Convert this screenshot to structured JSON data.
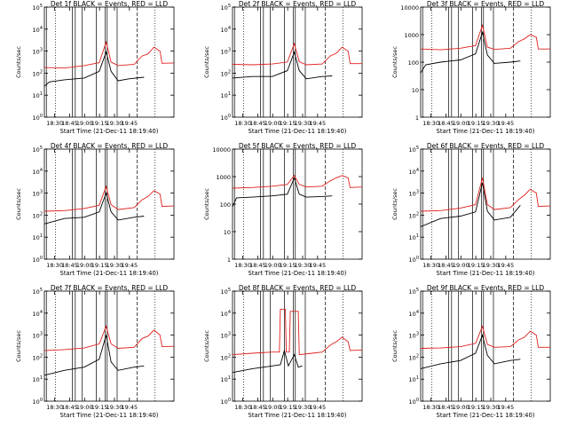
{
  "page": {
    "xlabel": "Start Time (21-Dec-11 18:19:40)",
    "ylabel": "Counts/sec",
    "xticks": [
      "18:30",
      "18:45",
      "19:00",
      "19:15",
      "19:30",
      "19:45"
    ],
    "colors": {
      "events": "#000000",
      "lld": "#e0201e",
      "axis": "#000000",
      "background": "#ffffff"
    }
  },
  "chart_data": [
    {
      "type": "line",
      "title": "Det 1f BLACK = Events, RED = LLD",
      "ylabel": "Counts/sec",
      "xlabel": "Start Time (21-Dec-11 18:19:40)",
      "yscale": "log",
      "ylim": [
        1,
        100000
      ],
      "yticks": [
        "10^0",
        "10^1",
        "10^2",
        "10^3",
        "10^4",
        "10^5"
      ],
      "x_range_min": [
        0,
        130
      ],
      "series": [
        {
          "name": "Events",
          "points": [
            [
              0,
              25
            ],
            [
              5,
              40
            ],
            [
              20,
              50
            ],
            [
              40,
              60
            ],
            [
              55,
              120
            ],
            [
              62,
              900
            ],
            [
              67,
              120
            ],
            [
              74,
              45
            ],
            [
              85,
              55
            ],
            [
              100,
              65
            ]
          ]
        },
        {
          "name": "LLD",
          "points": [
            [
              0,
              180
            ],
            [
              20,
              170
            ],
            [
              40,
              220
            ],
            [
              55,
              300
            ],
            [
              62,
              2600
            ],
            [
              67,
              320
            ],
            [
              74,
              220
            ],
            [
              90,
              250
            ],
            [
              98,
              600
            ],
            [
              104,
              750
            ],
            [
              110,
              1500
            ],
            [
              116,
              1000
            ],
            [
              118,
              280
            ],
            [
              130,
              290
            ]
          ]
        }
      ]
    },
    {
      "type": "line",
      "title": "Det 2f BLACK = Events, RED = LLD",
      "ylabel": "Counts/sec",
      "xlabel": "Start Time (21-Dec-11 18:19:40)",
      "yscale": "log",
      "ylim": [
        1,
        100000
      ],
      "yticks": [
        "10^0",
        "10^1",
        "10^2",
        "10^3",
        "10^4",
        "10^5"
      ],
      "x_range_min": [
        0,
        130
      ],
      "series": [
        {
          "name": "Events",
          "points": [
            [
              0,
              60
            ],
            [
              20,
              70
            ],
            [
              40,
              70
            ],
            [
              55,
              130
            ],
            [
              62,
              900
            ],
            [
              67,
              130
            ],
            [
              74,
              55
            ],
            [
              90,
              70
            ],
            [
              100,
              75
            ]
          ]
        },
        {
          "name": "LLD",
          "points": [
            [
              0,
              250
            ],
            [
              20,
              240
            ],
            [
              40,
              260
            ],
            [
              55,
              320
            ],
            [
              62,
              2200
            ],
            [
              67,
              330
            ],
            [
              74,
              240
            ],
            [
              90,
              260
            ],
            [
              98,
              600
            ],
            [
              104,
              800
            ],
            [
              110,
              1500
            ],
            [
              116,
              1000
            ],
            [
              118,
              270
            ],
            [
              130,
              270
            ]
          ]
        }
      ]
    },
    {
      "type": "line",
      "title": "Det 3f BLACK = Events, RED = LLD",
      "ylabel": "Counts/sec",
      "xlabel": "Start Time (21-Dec-11 18:19:40)",
      "yscale": "log",
      "ylim": [
        1,
        10000
      ],
      "yticks": [
        "1",
        "10",
        "100",
        "1000",
        "10000"
      ],
      "x_range_min": [
        0,
        130
      ],
      "series": [
        {
          "name": "Events",
          "points": [
            [
              0,
              40
            ],
            [
              5,
              80
            ],
            [
              20,
              100
            ],
            [
              40,
              120
            ],
            [
              55,
              200
            ],
            [
              62,
              1200
            ],
            [
              67,
              180
            ],
            [
              74,
              90
            ],
            [
              90,
              100
            ],
            [
              100,
              110
            ]
          ]
        },
        {
          "name": "LLD",
          "points": [
            [
              0,
              300
            ],
            [
              20,
              280
            ],
            [
              40,
              320
            ],
            [
              55,
              400
            ],
            [
              62,
              2200
            ],
            [
              67,
              350
            ],
            [
              74,
              290
            ],
            [
              90,
              320
            ],
            [
              98,
              550
            ],
            [
              104,
              700
            ],
            [
              110,
              1000
            ],
            [
              116,
              800
            ],
            [
              118,
              300
            ],
            [
              130,
              300
            ]
          ]
        }
      ]
    },
    {
      "type": "line",
      "title": "Det 4f BLACK = Events, RED = LLD",
      "ylabel": "Counts/sec",
      "xlabel": "Start Time (21-Dec-11 18:19:40)",
      "yscale": "log",
      "ylim": [
        1,
        100000
      ],
      "yticks": [
        "10^0",
        "10^1",
        "10^2",
        "10^3",
        "10^4",
        "10^5"
      ],
      "x_range_min": [
        0,
        130
      ],
      "series": [
        {
          "name": "Events",
          "points": [
            [
              0,
              40
            ],
            [
              20,
              70
            ],
            [
              40,
              80
            ],
            [
              55,
              140
            ],
            [
              62,
              1000
            ],
            [
              67,
              140
            ],
            [
              74,
              60
            ],
            [
              90,
              80
            ],
            [
              100,
              90
            ]
          ]
        },
        {
          "name": "LLD",
          "points": [
            [
              0,
              150
            ],
            [
              20,
              160
            ],
            [
              40,
              200
            ],
            [
              55,
              280
            ],
            [
              62,
              2000
            ],
            [
              67,
              300
            ],
            [
              74,
              180
            ],
            [
              90,
              220
            ],
            [
              98,
              500
            ],
            [
              104,
              700
            ],
            [
              110,
              1300
            ],
            [
              116,
              900
            ],
            [
              118,
              250
            ],
            [
              130,
              260
            ]
          ]
        }
      ]
    },
    {
      "type": "line",
      "title": "Det 5f BLACK = Events, RED = LLD",
      "ylabel": "Counts/sec",
      "xlabel": "Start Time (21-Dec-11 18:19:40)",
      "yscale": "log",
      "ylim": [
        1,
        10000
      ],
      "yticks": [
        "1",
        "10",
        "100",
        "1000",
        "10000"
      ],
      "x_range_min": [
        0,
        130
      ],
      "series": [
        {
          "name": "Events",
          "points": [
            [
              0,
              80
            ],
            [
              4,
              170
            ],
            [
              20,
              180
            ],
            [
              40,
              200
            ],
            [
              55,
              230
            ],
            [
              62,
              900
            ],
            [
              67,
              230
            ],
            [
              74,
              180
            ],
            [
              90,
              190
            ],
            [
              100,
              200
            ]
          ]
        },
        {
          "name": "LLD",
          "points": [
            [
              0,
              380
            ],
            [
              20,
              400
            ],
            [
              40,
              450
            ],
            [
              55,
              520
            ],
            [
              62,
              1100
            ],
            [
              67,
              520
            ],
            [
              74,
              420
            ],
            [
              90,
              450
            ],
            [
              98,
              700
            ],
            [
              104,
              900
            ],
            [
              110,
              1100
            ],
            [
              116,
              900
            ],
            [
              118,
              400
            ],
            [
              130,
              420
            ]
          ]
        }
      ]
    },
    {
      "type": "line",
      "title": "Det 6f BLACK = Events, RED = LLD",
      "ylabel": "Counts/sec",
      "xlabel": "Start Time (21-Dec-11 18:19:40)",
      "yscale": "log",
      "ylim": [
        1,
        100000
      ],
      "yticks": [
        "10^0",
        "10^1",
        "10^2",
        "10^3",
        "10^4",
        "10^5"
      ],
      "x_range_min": [
        0,
        130
      ],
      "series": [
        {
          "name": "Events",
          "points": [
            [
              0,
              30
            ],
            [
              20,
              70
            ],
            [
              40,
              90
            ],
            [
              55,
              140
            ],
            [
              62,
              3000
            ],
            [
              67,
              150
            ],
            [
              74,
              60
            ],
            [
              90,
              80
            ],
            [
              100,
              280
            ]
          ]
        },
        {
          "name": "LLD",
          "points": [
            [
              0,
              150
            ],
            [
              20,
              160
            ],
            [
              40,
              210
            ],
            [
              55,
              300
            ],
            [
              62,
              5000
            ],
            [
              67,
              300
            ],
            [
              74,
              180
            ],
            [
              90,
              220
            ],
            [
              98,
              500
            ],
            [
              104,
              800
            ],
            [
              110,
              1500
            ],
            [
              116,
              1000
            ],
            [
              118,
              250
            ],
            [
              130,
              260
            ]
          ]
        }
      ]
    },
    {
      "type": "line",
      "title": "Det 7f BLACK = Events, RED = LLD",
      "ylabel": "Counts/sec",
      "xlabel": "Start Time (21-Dec-11 18:19:40)",
      "yscale": "log",
      "ylim": [
        1,
        100000
      ],
      "yticks": [
        "10^0",
        "10^1",
        "10^2",
        "10^3",
        "10^4",
        "10^5"
      ],
      "x_range_min": [
        0,
        130
      ],
      "series": [
        {
          "name": "Events",
          "points": [
            [
              0,
              15
            ],
            [
              20,
              25
            ],
            [
              40,
              35
            ],
            [
              55,
              80
            ],
            [
              62,
              1000
            ],
            [
              67,
              60
            ],
            [
              74,
              25
            ],
            [
              90,
              35
            ],
            [
              100,
              40
            ]
          ]
        },
        {
          "name": "LLD",
          "points": [
            [
              0,
              200
            ],
            [
              20,
              220
            ],
            [
              40,
              260
            ],
            [
              55,
              400
            ],
            [
              62,
              2500
            ],
            [
              67,
              400
            ],
            [
              74,
              250
            ],
            [
              90,
              280
            ],
            [
              98,
              700
            ],
            [
              104,
              900
            ],
            [
              110,
              1700
            ],
            [
              116,
              1000
            ],
            [
              118,
              300
            ],
            [
              130,
              310
            ]
          ]
        }
      ]
    },
    {
      "type": "line",
      "title": "Det 8f BLACK = Events, RED = LLD",
      "ylabel": "Counts/sec",
      "xlabel": "Start Time (21-Dec-11 18:19:40)",
      "yscale": "log",
      "ylim": [
        1,
        100000
      ],
      "yticks": [
        "10^0",
        "10^1",
        "10^2",
        "10^3",
        "10^4",
        "10^5"
      ],
      "x_range_min": [
        0,
        130
      ],
      "series": [
        {
          "name": "Events",
          "points": [
            [
              0,
              20
            ],
            [
              20,
              30
            ],
            [
              40,
              40
            ],
            [
              48,
              45
            ],
            [
              52,
              200
            ],
            [
              56,
              40
            ],
            [
              62,
              130
            ],
            [
              66,
              35
            ],
            [
              70,
              40
            ]
          ]
        },
        {
          "name": "LLD",
          "points": [
            [
              0,
              130
            ],
            [
              20,
              150
            ],
            [
              40,
              170
            ],
            [
              47,
              170
            ],
            [
              48,
              15000
            ],
            [
              53,
              15000
            ],
            [
              54,
              170
            ],
            [
              57,
              170
            ],
            [
              58,
              12000
            ],
            [
              66,
              12000
            ],
            [
              67,
              130
            ],
            [
              80,
              150
            ],
            [
              90,
              170
            ],
            [
              98,
              350
            ],
            [
              104,
              500
            ],
            [
              110,
              800
            ],
            [
              116,
              500
            ],
            [
              118,
              200
            ],
            [
              130,
              210
            ]
          ]
        }
      ]
    },
    {
      "type": "line",
      "title": "Det 9f BLACK = Events, RED = LLD",
      "ylabel": "Counts/sec",
      "xlabel": "Start Time (21-Dec-11 18:19:40)",
      "yscale": "log",
      "ylim": [
        1,
        100000
      ],
      "yticks": [
        "10^0",
        "10^1",
        "10^2",
        "10^3",
        "10^4",
        "10^5"
      ],
      "x_range_min": [
        0,
        130
      ],
      "series": [
        {
          "name": "Events",
          "points": [
            [
              0,
              30
            ],
            [
              20,
              50
            ],
            [
              40,
              70
            ],
            [
              55,
              150
            ],
            [
              62,
              1000
            ],
            [
              67,
              120
            ],
            [
              74,
              50
            ],
            [
              90,
              70
            ],
            [
              100,
              80
            ]
          ]
        },
        {
          "name": "LLD",
          "points": [
            [
              0,
              250
            ],
            [
              20,
              260
            ],
            [
              40,
              300
            ],
            [
              55,
              420
            ],
            [
              62,
              2500
            ],
            [
              67,
              380
            ],
            [
              74,
              280
            ],
            [
              90,
              300
            ],
            [
              98,
              600
            ],
            [
              104,
              800
            ],
            [
              110,
              1500
            ],
            [
              116,
              1000
            ],
            [
              118,
              280
            ],
            [
              130,
              280
            ]
          ]
        }
      ]
    }
  ]
}
